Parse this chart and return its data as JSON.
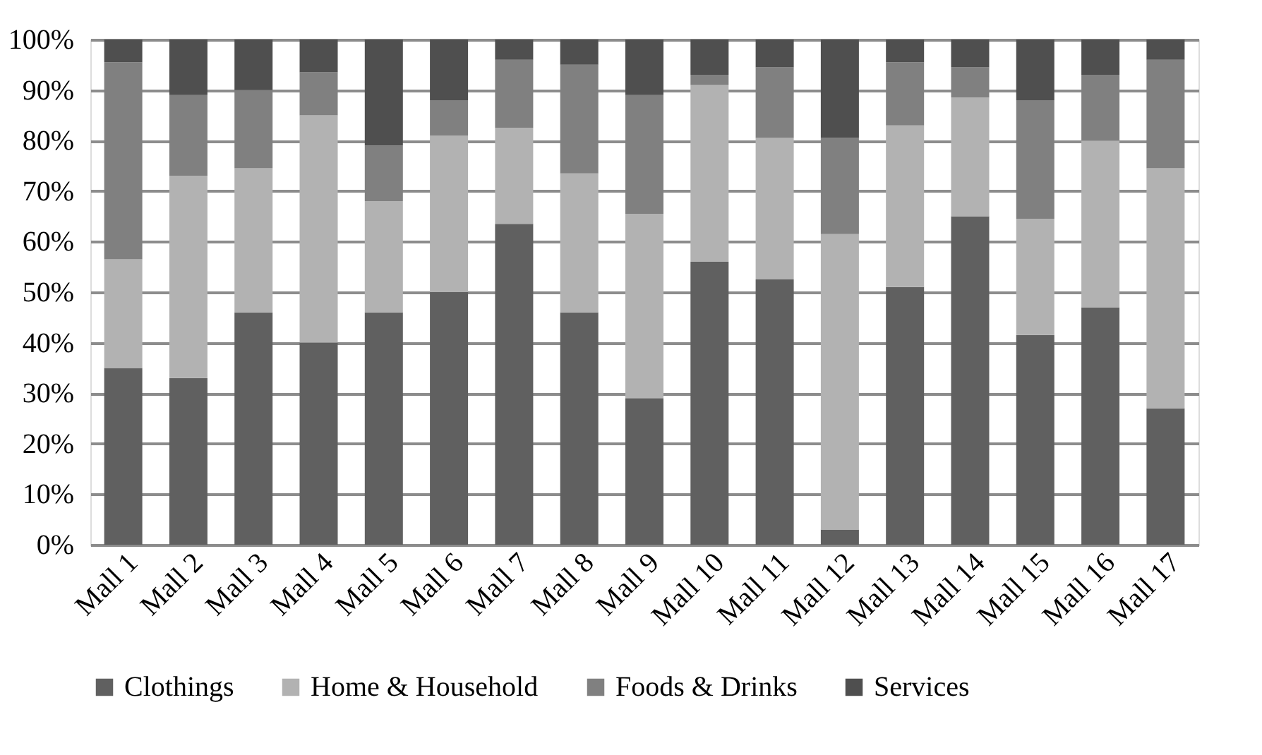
{
  "chart_data": {
    "type": "bar",
    "stacked": true,
    "categories": [
      "Mall 1",
      "Mall 2",
      "Mall 3",
      "Mall 4",
      "Mall 5",
      "Mall 6",
      "Mall 7",
      "Mall 8",
      "Mall 9",
      "Mall 10",
      "Mall 11",
      "Mall 12",
      "Mall 13",
      "Mall 14",
      "Mall 15",
      "Mall 16",
      "Mall 17"
    ],
    "series": [
      {
        "name": "Clothings",
        "color": "#606060",
        "values": [
          35,
          33,
          46,
          40,
          46,
          50,
          63.5,
          46,
          29,
          56,
          52.5,
          3,
          51,
          65,
          41.5,
          47,
          27
        ]
      },
      {
        "name": "Home & Household",
        "color": "#b2b2b2",
        "values": [
          21.5,
          40,
          28.5,
          45,
          22,
          31,
          19,
          27.5,
          36.5,
          35,
          28,
          58.5,
          32,
          23.5,
          23,
          33,
          47.5
        ]
      },
      {
        "name": "Foods & Drinks",
        "color": "#808080",
        "values": [
          39,
          16,
          15.5,
          8.5,
          11,
          7,
          13.5,
          21.5,
          23.5,
          2,
          14,
          19,
          12.5,
          6,
          23.5,
          13,
          21.5
        ]
      },
      {
        "name": "Services",
        "color": "#4f4f4f",
        "values": [
          4.5,
          11,
          10,
          6.5,
          21,
          12,
          4,
          5,
          11,
          7,
          5.5,
          19.5,
          4.5,
          5.5,
          12,
          7,
          4
        ]
      }
    ],
    "ylim": [
      0,
      100
    ],
    "yticks": [
      {
        "value": 0,
        "label": "0%"
      },
      {
        "value": 10,
        "label": "10%"
      },
      {
        "value": 20,
        "label": "20%"
      },
      {
        "value": 30,
        "label": "30%"
      },
      {
        "value": 40,
        "label": "40%"
      },
      {
        "value": 50,
        "label": "50%"
      },
      {
        "value": 60,
        "label": "60%"
      },
      {
        "value": 70,
        "label": "70%"
      },
      {
        "value": 80,
        "label": "80%"
      },
      {
        "value": 90,
        "label": "90%"
      },
      {
        "value": 100,
        "label": "100%"
      }
    ],
    "grid": "y",
    "legend": "bottom"
  }
}
